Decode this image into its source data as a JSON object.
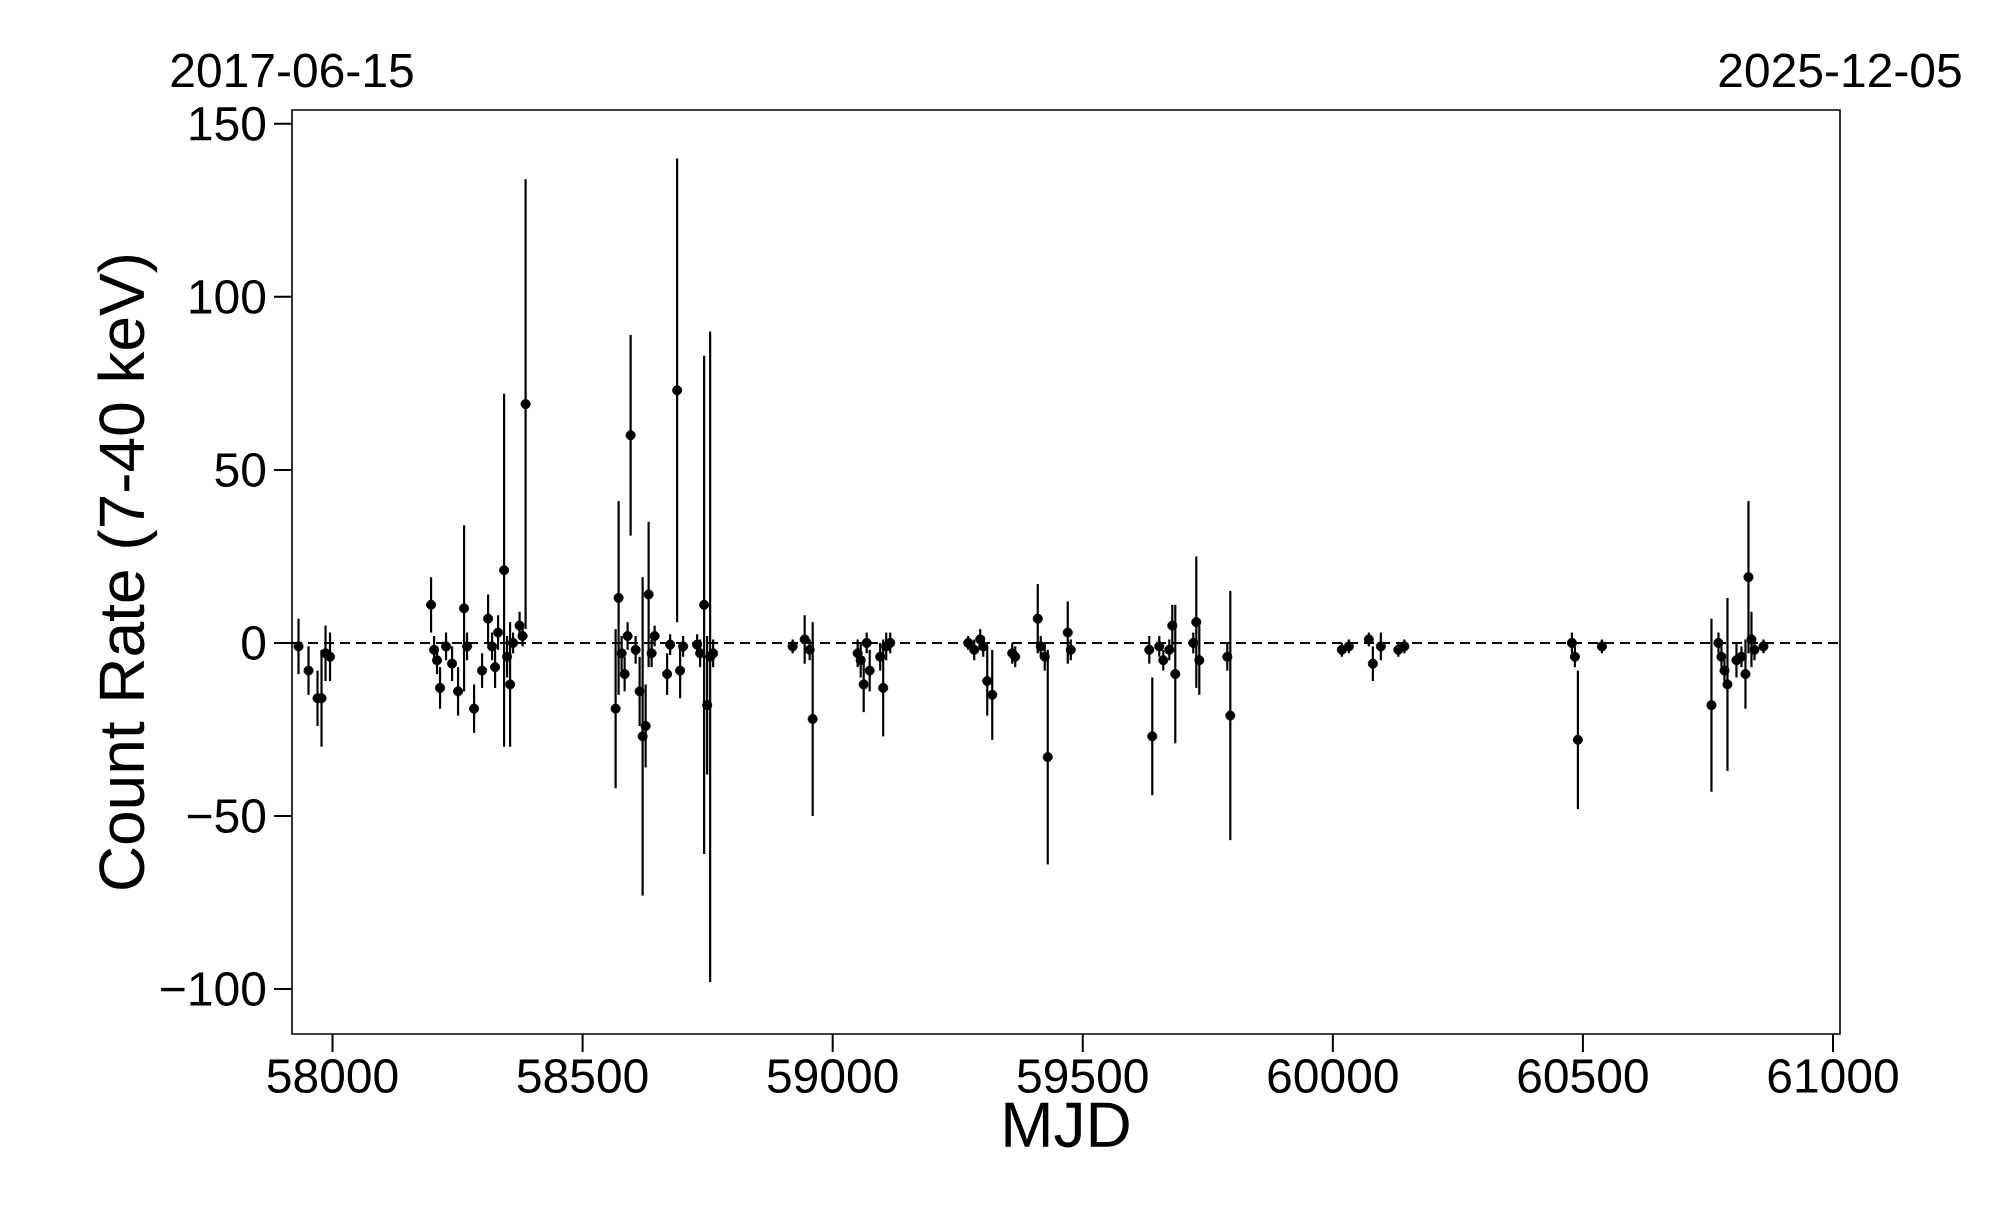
{
  "chart_data": {
    "type": "scatter",
    "xlabel": "MJD",
    "ylabel": "Count Rate (7-40 keV)",
    "xlim": [
      57919,
      61014
    ],
    "ylim": [
      -113,
      154
    ],
    "xticks": [
      58000,
      58500,
      59000,
      59500,
      60000,
      60500,
      61000
    ],
    "yticks": [
      {
        "value": -100,
        "label": "−100"
      },
      {
        "value": -50,
        "label": "−50"
      },
      0,
      50,
      100,
      150
    ],
    "annotations": [
      "2017-06-15",
      "2025-12-05"
    ],
    "series": [
      {
        "color": "#000000",
        "x": [
          57932,
          57952,
          57970,
          57978,
          57986,
          57995,
          58197,
          58203,
          58209,
          58215,
          58227,
          58239,
          58251,
          58263,
          58269,
          58283,
          58299,
          58311,
          58319,
          58325,
          58331,
          58343,
          58349,
          58355,
          58361,
          58374,
          58380,
          58386,
          58566,
          58572,
          58578,
          58584,
          58590,
          58596,
          58606,
          58614,
          58620,
          58626,
          58632,
          58638,
          58644,
          58669,
          58675,
          58689,
          58695,
          58701,
          58729,
          58735,
          58743,
          58749,
          58755,
          58761,
          58920,
          58944,
          58954,
          58960,
          59050,
          59056,
          59062,
          59068,
          59074,
          59095,
          59101,
          59107,
          59115,
          59271,
          59283,
          59295,
          59301,
          59309,
          59319,
          59359,
          59365,
          59410,
          59416,
          59424,
          59430,
          59470,
          59476,
          59633,
          59639,
          59653,
          59661,
          59673,
          59679,
          59685,
          59721,
          59727,
          59733,
          59789,
          59795,
          60018,
          60032,
          60072,
          60080,
          60096,
          60131,
          60143,
          60478,
          60484,
          60490,
          60538,
          60757,
          60771,
          60777,
          60783,
          60789,
          60807,
          60817,
          60825,
          60831,
          60837,
          60843,
          60861
        ],
        "values": [
          -1,
          -8,
          -16,
          -16,
          -3,
          -4,
          11,
          -2,
          -5,
          -13,
          -1,
          -6,
          -14,
          10,
          -1,
          -19,
          -8,
          7,
          -1,
          -7,
          3,
          21,
          -4,
          -12,
          0,
          5,
          2,
          69,
          -19,
          13,
          -3,
          -9,
          2,
          60,
          -2,
          -14,
          -27,
          -24,
          14,
          -3,
          2,
          -9,
          -0.5,
          73,
          -8,
          -1,
          -0.5,
          -3,
          11,
          -18,
          -4,
          -3,
          -1,
          1,
          -2,
          -22,
          -3,
          -5,
          -12,
          0,
          -8,
          -4,
          -13,
          -1,
          0,
          0,
          -2,
          1,
          -1,
          -11,
          -15,
          -3,
          -4,
          7,
          -1,
          -4,
          -33,
          3,
          -2,
          -2,
          -27,
          -1,
          -5,
          -2,
          5,
          -9,
          0,
          6,
          -5,
          -4,
          -21,
          -2,
          -1,
          1,
          -6,
          -1,
          -2,
          -1,
          0,
          -4,
          -28,
          -1,
          -18,
          0,
          -4,
          -8,
          -12,
          -5,
          -4,
          -9,
          19,
          1,
          -2,
          -1
        ],
        "errors": [
          8,
          7,
          8,
          14,
          8,
          7,
          8,
          4,
          4,
          6,
          4,
          5,
          7,
          24,
          4,
          7,
          5,
          7,
          4,
          6,
          5,
          51,
          6,
          18,
          3,
          4,
          3,
          65,
          23,
          28,
          5,
          5,
          4,
          29,
          4,
          10,
          46,
          12,
          21,
          4,
          3,
          6,
          3,
          67,
          8,
          3,
          3,
          4,
          72,
          20,
          94,
          4,
          2,
          7,
          3,
          28,
          4,
          5,
          8,
          3,
          6,
          4,
          14,
          4,
          3,
          2,
          3,
          3,
          3,
          10,
          13,
          3,
          3,
          10,
          3,
          4,
          31,
          9,
          3,
          4,
          17,
          3,
          3,
          3,
          6,
          20,
          3,
          19,
          10,
          4,
          36,
          2,
          2,
          2,
          5,
          4,
          2,
          2,
          3,
          3,
          20,
          2,
          25,
          3,
          3,
          3,
          25,
          5,
          3,
          10,
          22,
          8,
          3,
          2
        ]
      }
    ],
    "marker": "circle",
    "ref_lines": [
      {
        "axis": "y",
        "value": 0,
        "color": "#000000",
        "line_style": "dashed"
      }
    ],
    "grid": false
  }
}
